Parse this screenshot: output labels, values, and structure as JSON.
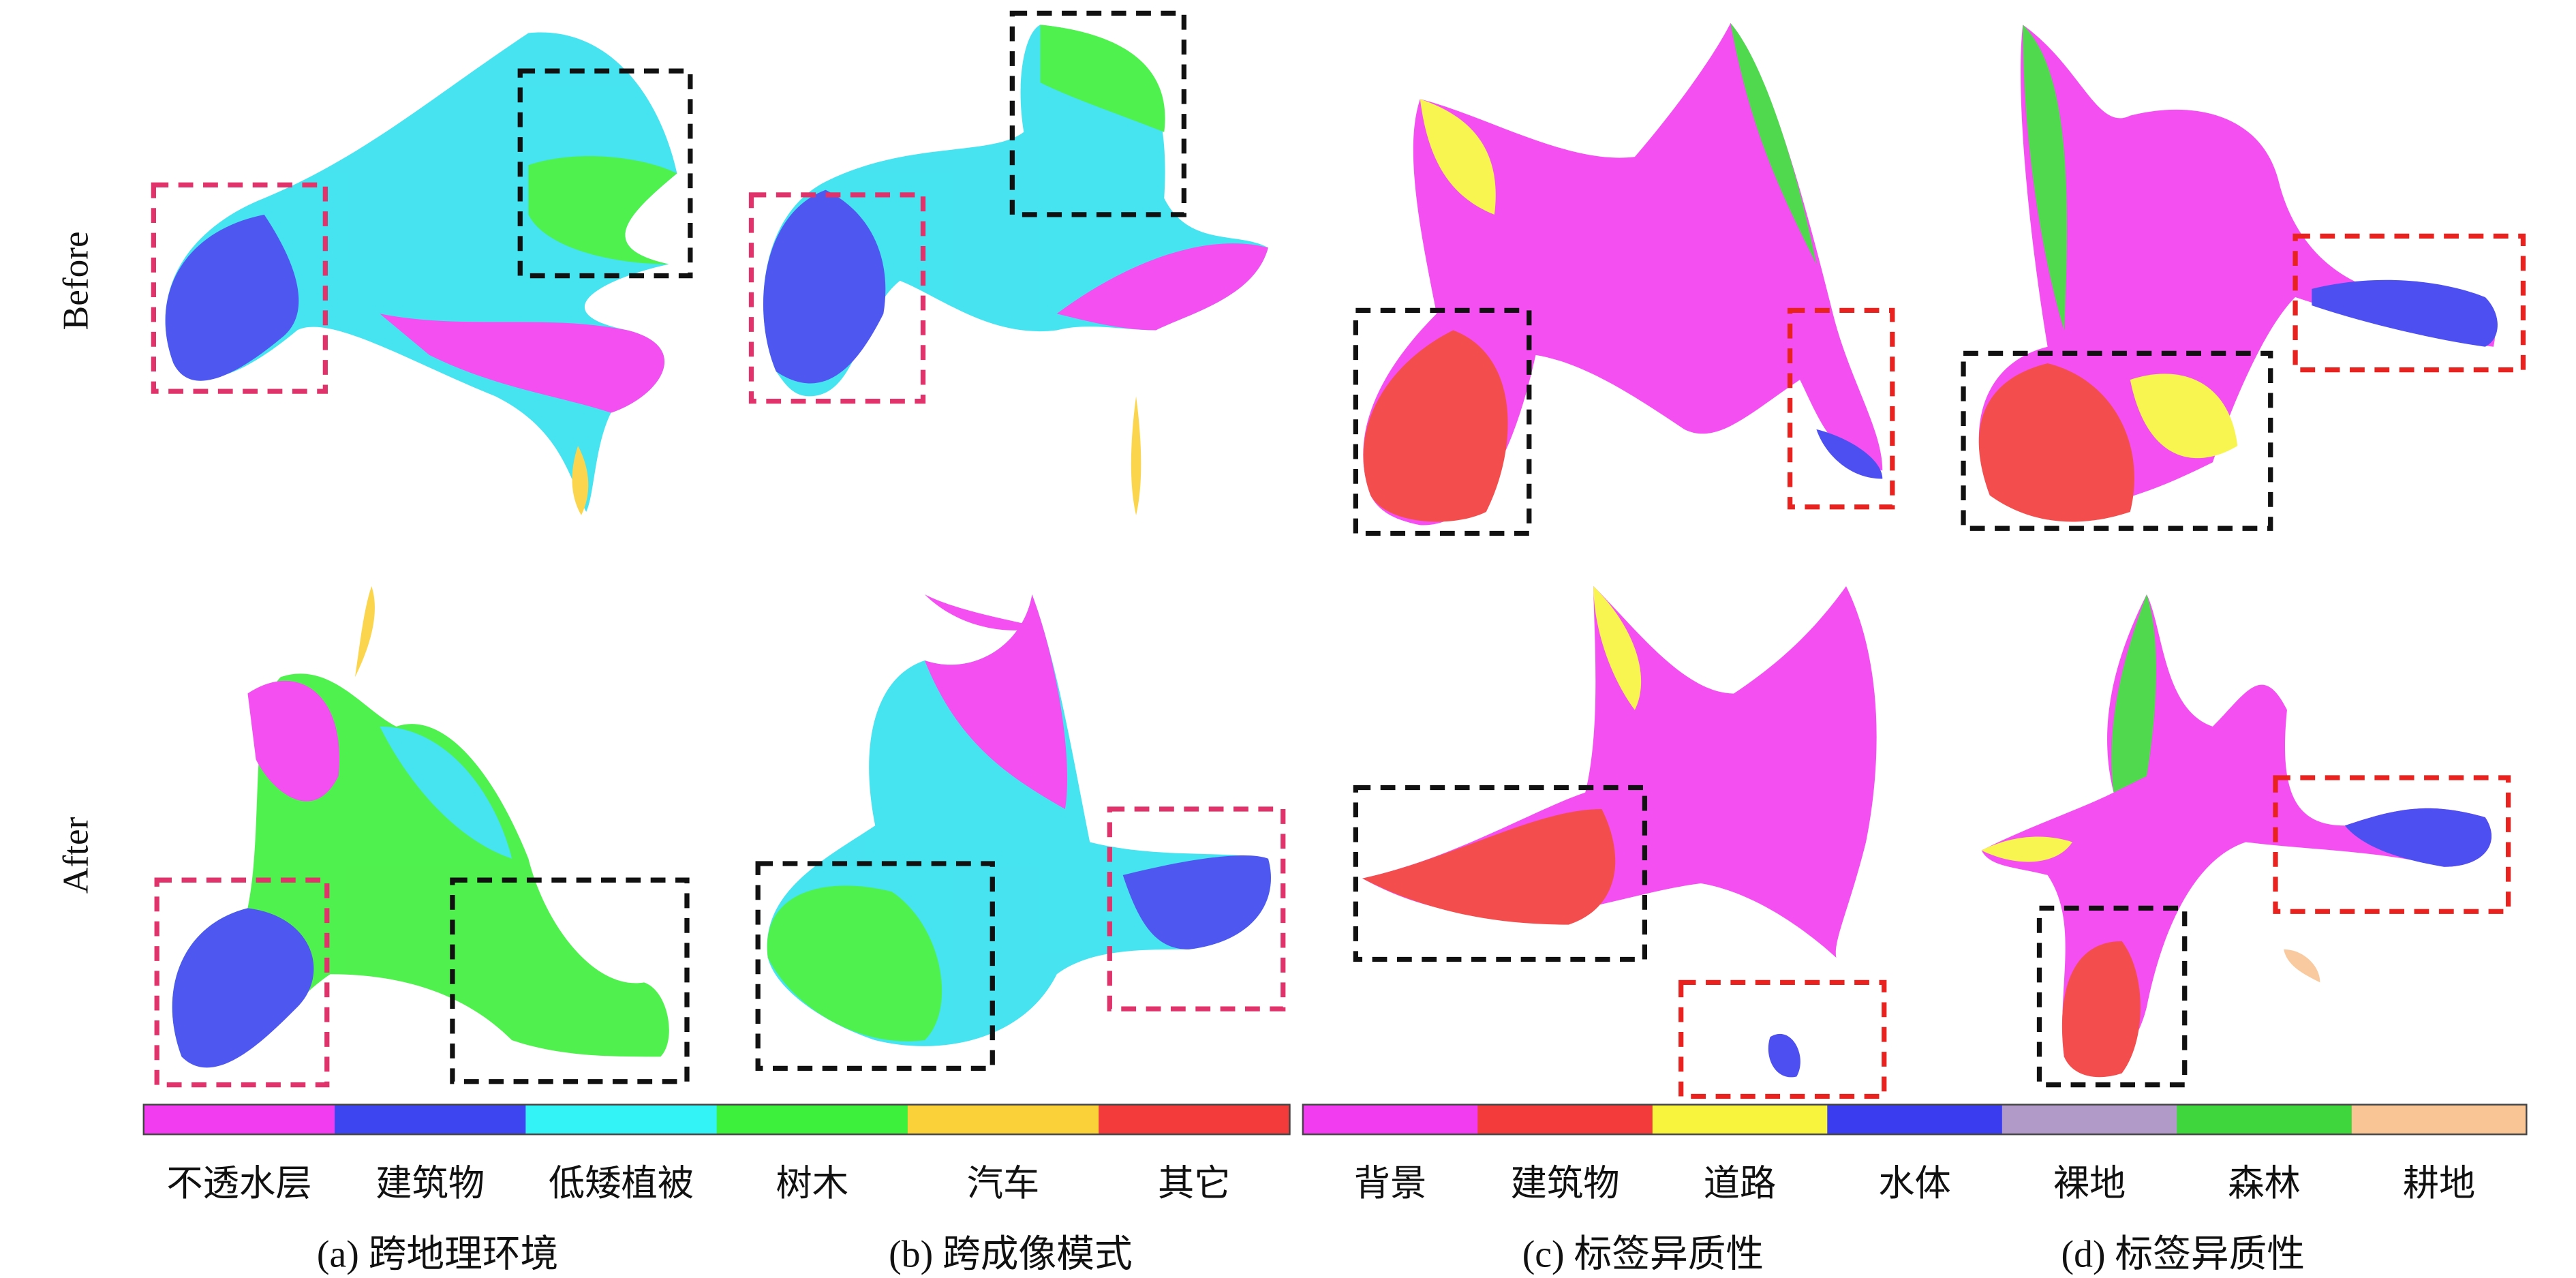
{
  "row_labels": [
    "Before",
    "After"
  ],
  "legend_left": [
    {
      "label": "不透水层",
      "color": "#f23cf0"
    },
    {
      "label": "建筑物",
      "color": "#3d45f0"
    },
    {
      "label": "低矮植被",
      "color": "#33f3f6"
    },
    {
      "label": "树木",
      "color": "#3df03b"
    },
    {
      "label": "汽车",
      "color": "#fbd13a"
    },
    {
      "label": "其它",
      "color": "#f23b3a"
    }
  ],
  "legend_right": [
    {
      "label": "背景",
      "color": "#f23cf0"
    },
    {
      "label": "建筑物",
      "color": "#f23b3a"
    },
    {
      "label": "道路",
      "color": "#f8f43e"
    },
    {
      "label": "水体",
      "color": "#3a3cf0"
    },
    {
      "label": "裸地",
      "color": "#b29ac8"
    },
    {
      "label": "森林",
      "color": "#3ed53d"
    },
    {
      "label": "耕地",
      "color": "#f9c595"
    }
  ],
  "captions": [
    "(a) 跨地理环境",
    "(b) 跨成像模式",
    "(c) 标签异质性",
    "(d) 标签异质性"
  ]
}
